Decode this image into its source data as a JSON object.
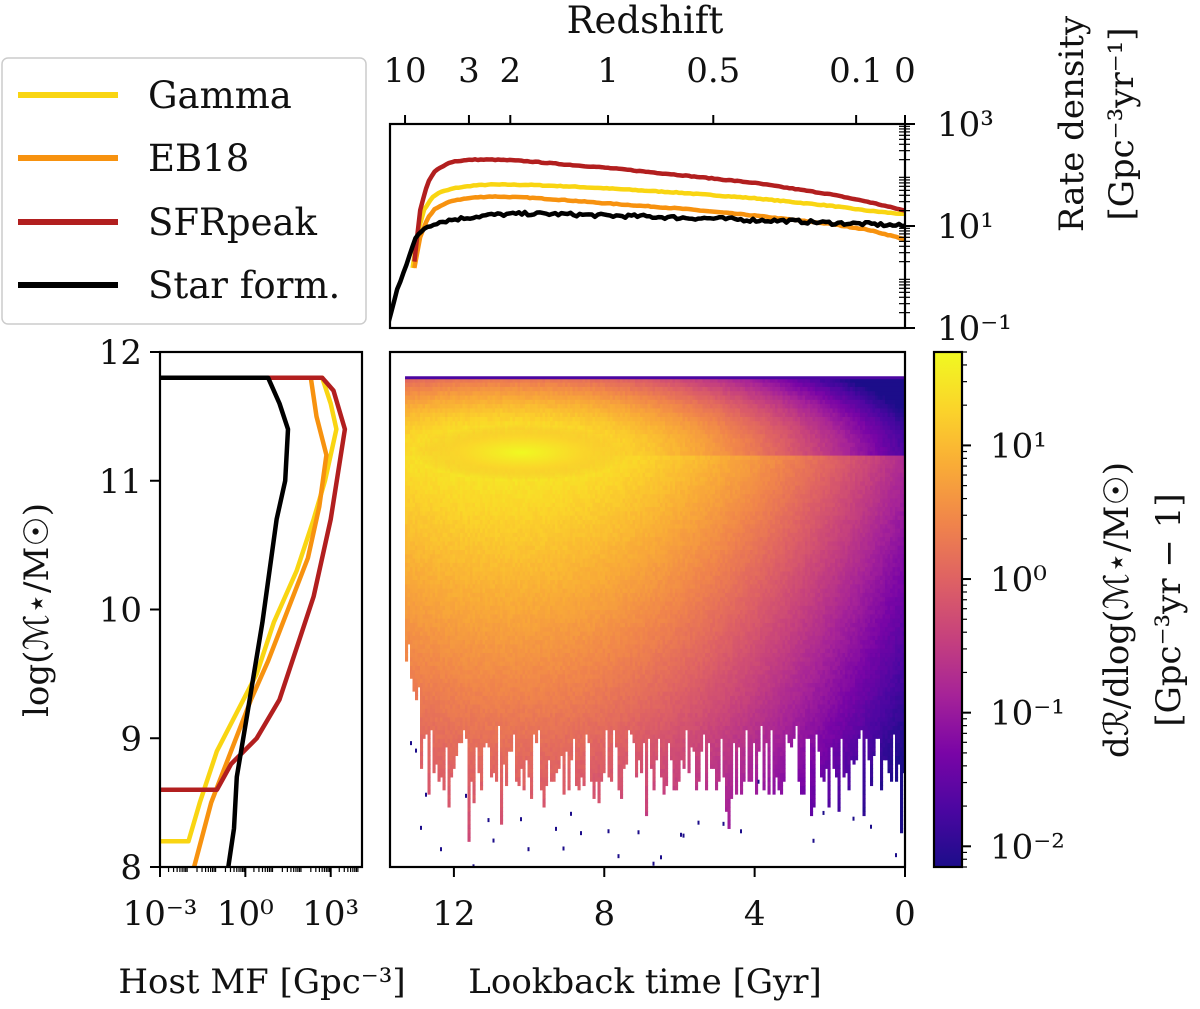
{
  "colors": {
    "gamma": "#f9d512",
    "eb18": "#f7920f",
    "sfrpeak": "#b21f1f",
    "starform": "#000000",
    "cmap": [
      "#1c0d8a",
      "#4b06a1",
      "#7a05a6",
      "#a62398",
      "#c6417d",
      "#de6164",
      "#f0844b",
      "#f9ab37",
      "#fbd42a",
      "#f0f921"
    ]
  },
  "chart_data": [
    {
      "id": "rate-density",
      "type": "line",
      "x_axis": {
        "label": "Redshift",
        "position": "top",
        "ticks": [
          "10",
          "3",
          "2",
          "1",
          "0.5",
          "0.1",
          "0"
        ],
        "tick_lookback_gyr": [
          13.3,
          11.6,
          10.5,
          7.9,
          5.1,
          1.3,
          0
        ]
      },
      "y_axis": {
        "label": "Rate density",
        "unit": "[Gpc⁻³yr⁻¹]",
        "position": "right",
        "scale": "log",
        "ticks": [
          "10³",
          "10¹",
          "10⁻¹"
        ],
        "tick_values": [
          1000,
          10,
          0.1
        ],
        "ylim": [
          0.1,
          1000
        ]
      },
      "xlim_lookback_gyr": [
        13.7,
        0
      ],
      "series": [
        {
          "name": "Gamma",
          "color_key": "gamma",
          "x": [
            13.1,
            12.95,
            12.8,
            12.6,
            12.4,
            12.0,
            11.5,
            11.0,
            10.0,
            9.0,
            8.0,
            6.0,
            4.0,
            2.0,
            1.0,
            0.0
          ],
          "y": [
            1.5,
            8,
            20,
            35,
            45,
            55,
            62,
            65,
            64,
            60,
            55,
            45,
            35,
            25,
            20,
            17
          ]
        },
        {
          "name": "EB18",
          "color_key": "eb18",
          "x": [
            13.05,
            12.9,
            12.7,
            12.5,
            12.2,
            12.0,
            11.5,
            11.0,
            10.0,
            9.0,
            8.0,
            6.0,
            4.0,
            2.0,
            1.0,
            0.0
          ],
          "y": [
            1.5,
            6,
            14,
            22,
            28,
            32,
            36,
            38,
            36,
            32,
            28,
            22,
            16,
            11,
            8.5,
            5.5
          ]
        },
        {
          "name": "SFRpeak",
          "color_key": "sfrpeak",
          "x": [
            13.05,
            12.9,
            12.7,
            12.5,
            12.2,
            12.0,
            11.5,
            11.0,
            10.5,
            10.0,
            9.0,
            8.0,
            6.0,
            4.0,
            2.0,
            1.0,
            0.0
          ],
          "y": [
            2,
            20,
            70,
            120,
            165,
            185,
            200,
            200,
            195,
            185,
            160,
            140,
            100,
            70,
            42,
            30,
            20
          ]
        },
        {
          "name": "Star form.",
          "color_key": "starform",
          "x": [
            13.75,
            13.5,
            13.2,
            13.0,
            12.8,
            12.5,
            12.0,
            11.5,
            11.0,
            10.0,
            9.0,
            8.0,
            7.0,
            6.0,
            5.0,
            4.0,
            3.0,
            2.0,
            1.0,
            0.0
          ],
          "y": [
            0.12,
            0.6,
            2.5,
            6,
            9,
            11.5,
            13.5,
            15,
            16.5,
            17.5,
            17,
            16,
            15.5,
            14.5,
            14,
            13,
            12.5,
            11.5,
            11,
            10
          ]
        }
      ]
    },
    {
      "id": "host-mass-function",
      "type": "line",
      "x_axis": {
        "label": "Host MF [Gpc⁻³]",
        "scale": "log",
        "ticks": [
          "10⁻³",
          "10⁰",
          "10³"
        ],
        "tick_exponents": [
          -3,
          0,
          3
        ],
        "xlim_exponent": [
          -3,
          4.1
        ]
      },
      "y_axis": {
        "label": "log(ℳ⋆/M☉)",
        "ticks": [
          "8",
          "9",
          "10",
          "11",
          "12"
        ],
        "tick_values": [
          8,
          9,
          10,
          11,
          12
        ],
        "ylim": [
          8,
          12
        ]
      },
      "series": [
        {
          "name": "Gamma",
          "color_key": "gamma",
          "log_x": [
            -3,
            -2.0,
            -1.6,
            -1.0,
            -0.3,
            0.4,
            1.0,
            1.8,
            2.4,
            2.8,
            3.2,
            3.0,
            2.7,
            -3
          ],
          "y": [
            8.2,
            8.2,
            8.5,
            8.9,
            9.2,
            9.5,
            9.9,
            10.3,
            10.7,
            11.0,
            11.4,
            11.6,
            11.8,
            11.8
          ]
        },
        {
          "name": "EB18",
          "color_key": "eb18",
          "log_x": [
            -1.8,
            -1.2,
            -0.5,
            0.2,
            0.8,
            1.5,
            2.2,
            2.6,
            2.85,
            2.5,
            2.3,
            -3
          ],
          "y": [
            8.0,
            8.5,
            8.9,
            9.3,
            9.6,
            10.0,
            10.4,
            10.8,
            11.2,
            11.5,
            11.8,
            11.8
          ]
        },
        {
          "name": "SFRpeak",
          "color_key": "sfrpeak",
          "log_x": [
            -3,
            -1.0,
            -0.5,
            0.4,
            1.2,
            1.8,
            2.4,
            3.0,
            3.5,
            3.1,
            2.7,
            -3
          ],
          "y": [
            8.6,
            8.6,
            8.8,
            9.0,
            9.3,
            9.7,
            10.1,
            10.7,
            11.4,
            11.7,
            11.8,
            11.8
          ]
        },
        {
          "name": "Star form.",
          "color_key": "starform",
          "log_x": [
            -0.6,
            -0.4,
            -0.3,
            0.0,
            0.3,
            0.6,
            0.85,
            1.1,
            1.4,
            1.5,
            1.2,
            0.8,
            -3
          ],
          "y": [
            8.0,
            8.3,
            8.7,
            9.1,
            9.5,
            9.9,
            10.3,
            10.7,
            11.0,
            11.4,
            11.6,
            11.8,
            11.8
          ]
        }
      ]
    },
    {
      "id": "mass-time-density",
      "type": "heatmap",
      "x_axis": {
        "label": "Lookback time [Gyr]",
        "ticks": [
          "12",
          "8",
          "4",
          "0"
        ],
        "tick_values": [
          12,
          8,
          4,
          0
        ],
        "xlim": [
          13.7,
          0
        ]
      },
      "y_axis": {
        "ylim": [
          8,
          12
        ]
      },
      "value_range": [
        0.007,
        50
      ],
      "colorbar": {
        "label": "dℛ/dlog(ℳ⋆/M☉)",
        "unit": "[Gpc⁻³yr − 1]",
        "scale": "log",
        "ticks": [
          "10¹",
          "10⁰",
          "10⁻¹",
          "10⁻²"
        ],
        "tick_values": [
          10,
          1,
          0.1,
          0.01
        ],
        "range": [
          0.007,
          50
        ]
      }
    }
  ],
  "legend": {
    "entries": [
      {
        "label": "Gamma",
        "color_key": "gamma"
      },
      {
        "label": "EB18",
        "color_key": "eb18"
      },
      {
        "label": "SFRpeak",
        "color_key": "sfrpeak"
      },
      {
        "label": "Star form.",
        "color_key": "starform"
      }
    ]
  }
}
